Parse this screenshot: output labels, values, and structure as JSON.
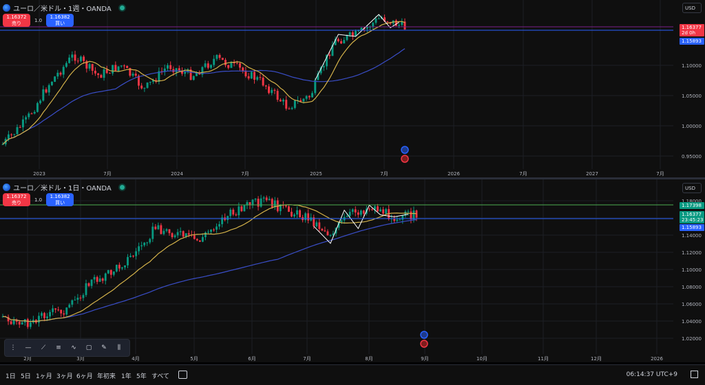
{
  "pane_top": {
    "symbol_title": "ユーロ／米ドル・1週・OANDA",
    "sell": {
      "price": "1.16372",
      "label": "売り"
    },
    "spread": "1.0",
    "buy": {
      "price": "1.16382",
      "label": "買い"
    },
    "currency": "USD",
    "price_ticks": [
      "1.10000",
      "1.05000",
      "1.00000",
      "0.95000"
    ],
    "price_tick_values": [
      1.1,
      1.05,
      1.0,
      0.95
    ],
    "badges": {
      "last": {
        "price": "1.16377",
        "countdown": "2d 0h",
        "color": "#f23645"
      },
      "line": {
        "price": "1.15893",
        "color": "#2962ff"
      }
    },
    "time_ticks": [
      "2023",
      "7月",
      "2024",
      "7月",
      "2025",
      "7月",
      "2026",
      "7月",
      "2027",
      "7月"
    ]
  },
  "pane_bottom": {
    "symbol_title": "ユーロ／米ドル・1日・OANDA",
    "sell": {
      "price": "1.16372",
      "label": "売り"
    },
    "spread": "1.0",
    "buy": {
      "price": "1.16382",
      "label": "買い"
    },
    "currency": "USD",
    "price_ticks": [
      "1.18000",
      "1.16000",
      "1.14000",
      "1.12000",
      "1.10000",
      "1.08000",
      "1.06000",
      "1.04000",
      "1.02000"
    ],
    "price_tick_values": [
      1.18,
      1.16,
      1.14,
      1.12,
      1.1,
      1.08,
      1.06,
      1.04,
      1.02
    ],
    "badges": {
      "resistance": {
        "price": "1.17398",
        "color": "#089981"
      },
      "last": {
        "price": "1.16377",
        "countdown": "23:45:23",
        "color": "#089981"
      },
      "line": {
        "price": "1.15893",
        "color": "#2962ff"
      }
    },
    "time_ticks": [
      "2月",
      "3月",
      "4月",
      "5月",
      "6月",
      "7月",
      "8月",
      "9月",
      "10月",
      "11月",
      "12月",
      "2026"
    ]
  },
  "drawing_tools": [
    "grip-icon",
    "horizontal-line-icon",
    "trend-line-icon",
    "parallel-channel-icon",
    "pattern-icon",
    "rectangle-icon",
    "brush-icon",
    "long-position-icon"
  ],
  "bottom_bar": {
    "ranges": [
      "1日",
      "5日",
      "1ヶ月",
      "3ヶ月",
      "6ヶ月",
      "年初来",
      "1年",
      "5年",
      "すべて"
    ],
    "clock": "06:14:37 UTC+9"
  },
  "colors": {
    "up": "#089981",
    "down": "#f23645",
    "ma_short": "#d4b24a",
    "ma_long": "#3a4ec9",
    "zigzag": "#ffffff",
    "background": "#0f0f0f"
  }
}
